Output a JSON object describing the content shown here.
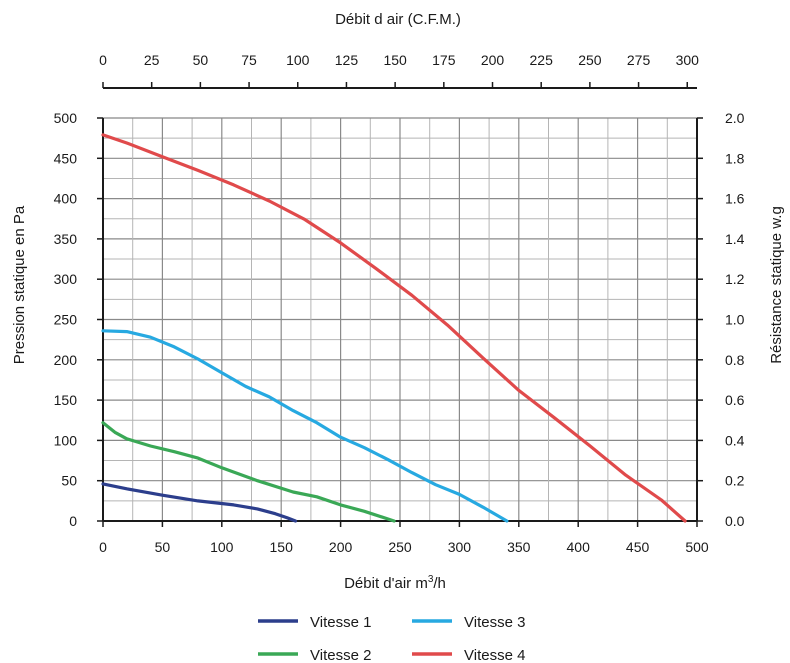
{
  "chart_data": {
    "type": "line",
    "xlabel": "Débit d'air m",
    "xlabel_sup": "3",
    "xlabel_tail": "/h",
    "ylabel": "Pression statique en Pa",
    "x_ticks": [
      "0",
      "50",
      "100",
      "150",
      "200",
      "250",
      "300",
      "350",
      "400",
      "450",
      "500"
    ],
    "y_ticks": [
      "0",
      "50",
      "100",
      "150",
      "200",
      "250",
      "300",
      "350",
      "400",
      "450",
      "500"
    ],
    "xlim": [
      0,
      500
    ],
    "ylim": [
      0,
      500
    ],
    "grid": true,
    "legend_position": "bottom",
    "top_axis": {
      "label": "Débit d air  (C.F.M.)",
      "ticks": [
        "0",
        "25",
        "50",
        "75",
        "100",
        "125",
        "150",
        "175",
        "200",
        "225",
        "250",
        "275",
        "300"
      ]
    },
    "right_axis": {
      "label": "Résistance statique w.g",
      "ticks": [
        "0.0",
        "0.2",
        "0.4",
        "0.6",
        "0.8",
        "1.0",
        "1.2",
        "1.4",
        "1.6",
        "1.8",
        "2.0"
      ]
    },
    "series": [
      {
        "name": "Vitesse 1",
        "color": "#2c3e8c",
        "points": [
          [
            0,
            46
          ],
          [
            20,
            40
          ],
          [
            50,
            32
          ],
          [
            80,
            25
          ],
          [
            110,
            20
          ],
          [
            130,
            15
          ],
          [
            145,
            9
          ],
          [
            155,
            4
          ],
          [
            162,
            0
          ]
        ]
      },
      {
        "name": "Vitesse 2",
        "color": "#3aa856",
        "points": [
          [
            0,
            122
          ],
          [
            10,
            110
          ],
          [
            20,
            102
          ],
          [
            40,
            93
          ],
          [
            60,
            86
          ],
          [
            80,
            78
          ],
          [
            100,
            66
          ],
          [
            130,
            50
          ],
          [
            160,
            36
          ],
          [
            180,
            30
          ],
          [
            200,
            20
          ],
          [
            220,
            12
          ],
          [
            245,
            0
          ]
        ]
      },
      {
        "name": "Vitesse 3",
        "color": "#27a9e1",
        "points": [
          [
            0,
            236
          ],
          [
            20,
            235
          ],
          [
            40,
            228
          ],
          [
            60,
            216
          ],
          [
            80,
            201
          ],
          [
            100,
            184
          ],
          [
            120,
            167
          ],
          [
            140,
            154
          ],
          [
            160,
            137
          ],
          [
            180,
            122
          ],
          [
            200,
            104
          ],
          [
            220,
            91
          ],
          [
            240,
            76
          ],
          [
            260,
            60
          ],
          [
            280,
            45
          ],
          [
            300,
            33
          ],
          [
            320,
            17
          ],
          [
            340,
            0
          ]
        ]
      },
      {
        "name": "Vitesse 4",
        "color": "#e04a4b",
        "points": [
          [
            0,
            479
          ],
          [
            20,
            469
          ],
          [
            50,
            452
          ],
          [
            80,
            435
          ],
          [
            110,
            417
          ],
          [
            140,
            397
          ],
          [
            170,
            374
          ],
          [
            200,
            345
          ],
          [
            230,
            313
          ],
          [
            260,
            280
          ],
          [
            290,
            243
          ],
          [
            320,
            202
          ],
          [
            350,
            162
          ],
          [
            380,
            128
          ],
          [
            410,
            93
          ],
          [
            440,
            57
          ],
          [
            470,
            26
          ],
          [
            490,
            0
          ]
        ]
      }
    ]
  }
}
